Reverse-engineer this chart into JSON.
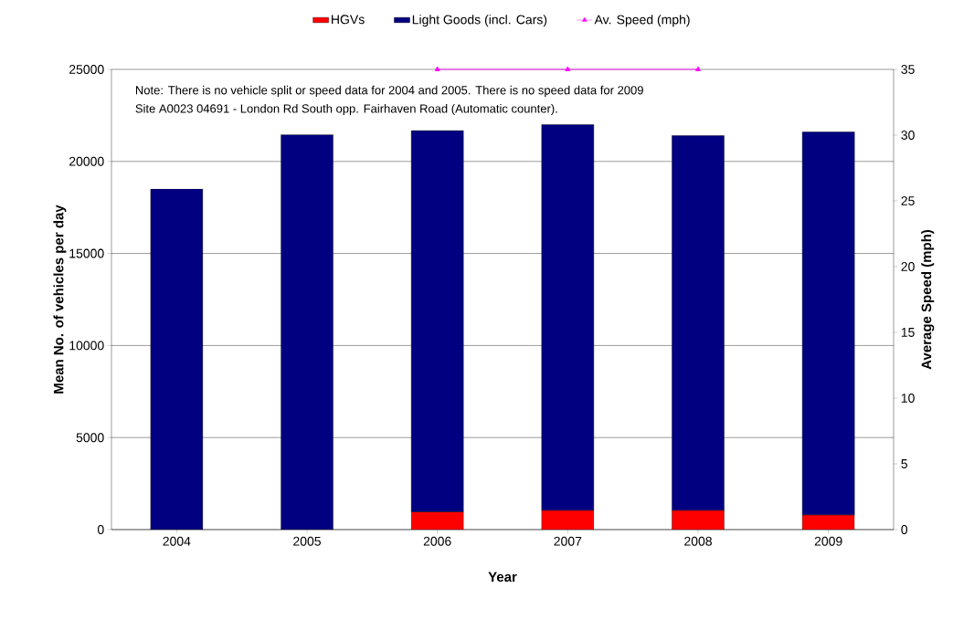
{
  "chart_data": {
    "type": "bar",
    "stacked": true,
    "xlabel": "Year",
    "ylabel": "Mean No. of vehicles per day",
    "y2label": "Average Speed (mph)",
    "categories": [
      "2004",
      "2005",
      "2006",
      "2007",
      "2008",
      "2009"
    ],
    "series": [
      {
        "name": "HGVs",
        "color": "#ff0000",
        "values": [
          null,
          null,
          970,
          1050,
          1050,
          800
        ]
      },
      {
        "name": "Light Goods (incl. Cars)",
        "color": "#000080",
        "values": [
          18500,
          21450,
          20700,
          20950,
          20350,
          20800
        ]
      },
      {
        "name": "Av. Speed (mph)",
        "type": "line",
        "axis": "y2",
        "color": "#ff00ff",
        "marker": "triangle",
        "values": [
          null,
          null,
          35,
          35,
          35,
          null
        ]
      }
    ],
    "ylim": [
      0,
      25000
    ],
    "yticks": [
      0,
      5000,
      10000,
      15000,
      20000,
      25000
    ],
    "y2lim": [
      0,
      35
    ],
    "y2ticks": [
      0,
      5,
      10,
      15,
      20,
      25,
      30,
      35
    ],
    "grid": "y",
    "legend": "top",
    "annotations": [
      "Note: There is no vehicle split or speed data for 2004 and 2005.  There is no speed data for 2009",
      "Site A0023 04691 - London Rd South opp. Fairhaven Road (Automatic counter)."
    ]
  }
}
